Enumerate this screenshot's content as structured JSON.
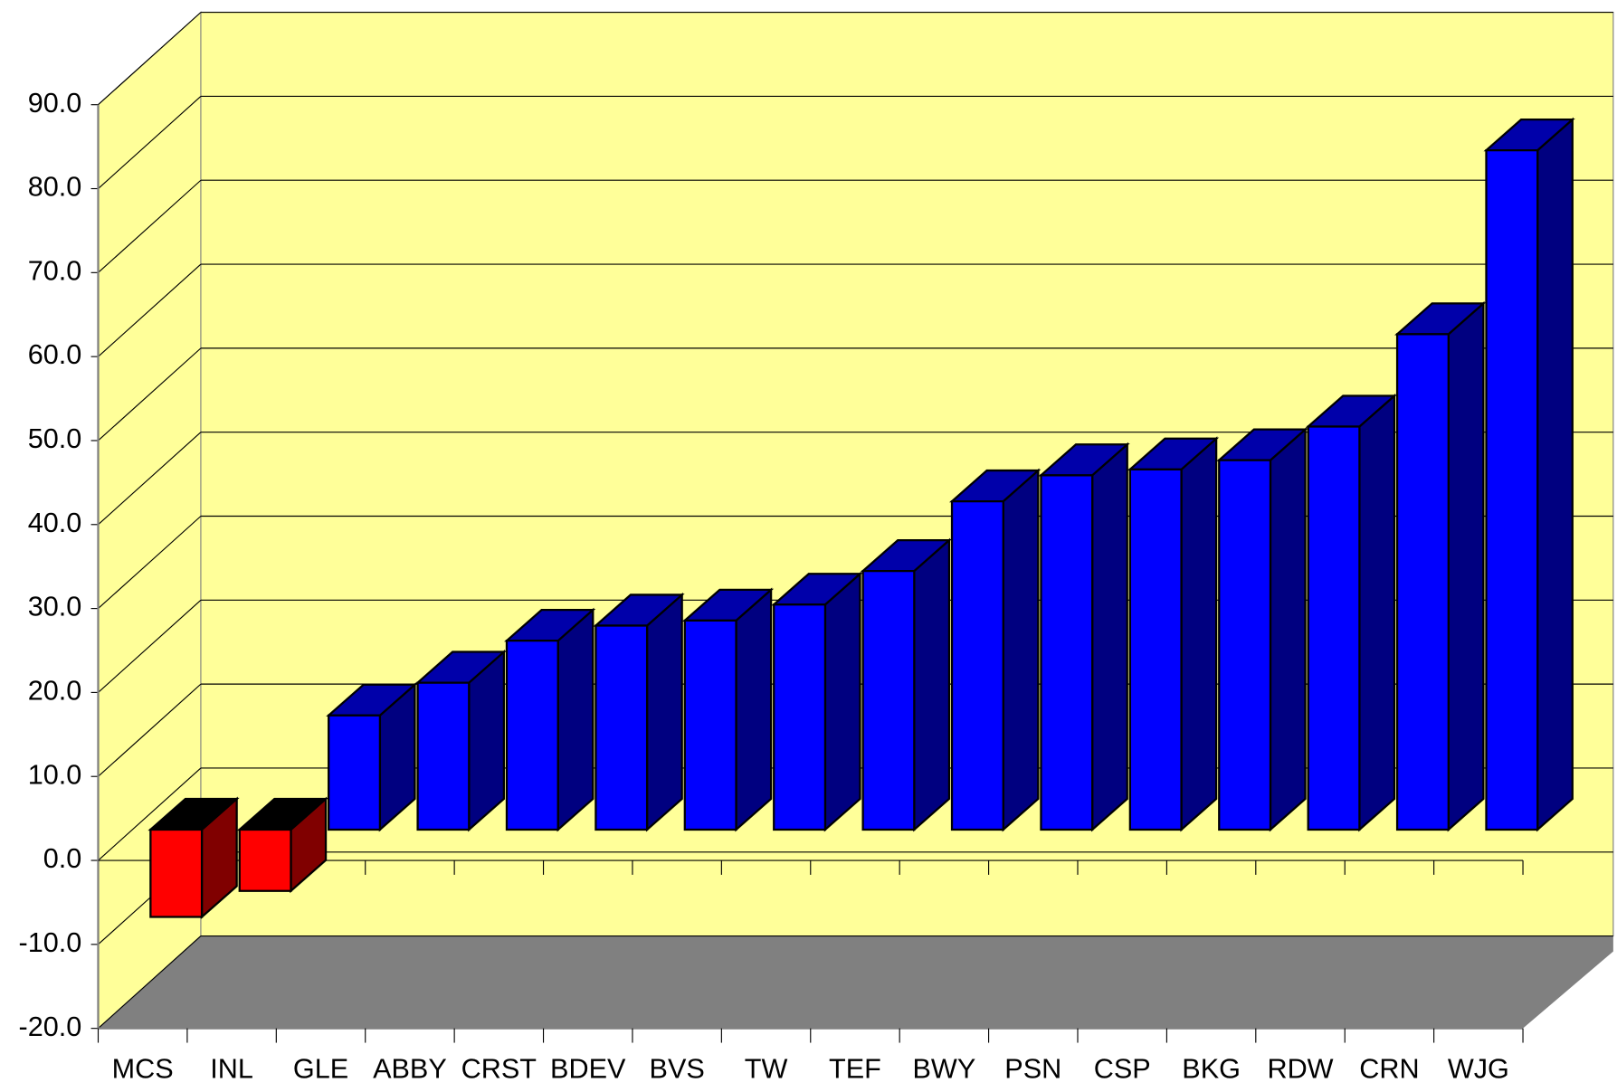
{
  "chart_data": {
    "type": "bar3d",
    "categories": [
      "MCS",
      "INL",
      "GLE",
      "ABBY",
      "CRST",
      "BDEV",
      "BVS",
      "TW",
      "TEF",
      "BWY",
      "PSN",
      "CSP",
      "BKG",
      "RDW",
      "CRN",
      "WJG"
    ],
    "values": [
      -10.4,
      -7.3,
      13.6,
      17.5,
      22.5,
      24.3,
      24.9,
      26.8,
      30.8,
      39.1,
      42.2,
      42.9,
      44.0,
      48.0,
      59.0,
      80.9
    ],
    "color": "#0000ff",
    "negative_color": "#ff0000",
    "ylim": [
      -20,
      90
    ],
    "yticks": [
      {
        "value": -20,
        "label": "-20.0"
      },
      {
        "value": -10,
        "label": "-10.0"
      },
      {
        "value": 0,
        "label": "0.0"
      },
      {
        "value": 10,
        "label": "10.0"
      },
      {
        "value": 20,
        "label": "20.0"
      },
      {
        "value": 30,
        "label": "30.0"
      },
      {
        "value": 40,
        "label": "40.0"
      },
      {
        "value": 50,
        "label": "50.0"
      },
      {
        "value": 60,
        "label": "60.0"
      },
      {
        "value": 70,
        "label": "70.0"
      },
      {
        "value": 80,
        "label": "80.0"
      },
      {
        "value": 90,
        "label": "90.0"
      }
    ],
    "grid": true
  }
}
